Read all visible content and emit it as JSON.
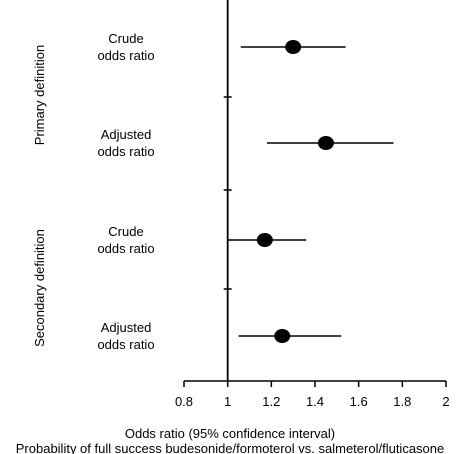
{
  "chart_data": {
    "type": "forest",
    "xlabel": "Odds ratio (95% confidence interval)",
    "caption": "Probability of full success budesonide/formoterol vs. salmeterol/fluticasone",
    "xlim": [
      0.8,
      2.0
    ],
    "xticks": [
      "0.8",
      "1",
      "1.2",
      "1.4",
      "1.6",
      "1.8",
      "2"
    ],
    "reference_line": 1.0,
    "groups": [
      {
        "name": "Primary definition",
        "rows": [
          {
            "label": [
              "Crude",
              "odds ratio"
            ],
            "or": 1.3,
            "lo": 1.06,
            "hi": 1.54
          },
          {
            "label": [
              "Adjusted",
              "odds ratio"
            ],
            "or": 1.45,
            "lo": 1.18,
            "hi": 1.76
          }
        ]
      },
      {
        "name": "Secondary definition",
        "rows": [
          {
            "label": [
              "Crude",
              "odds ratio"
            ],
            "or": 1.17,
            "lo": 1.0,
            "hi": 1.36
          },
          {
            "label": [
              "Adjusted",
              "odds ratio"
            ],
            "or": 1.25,
            "lo": 1.05,
            "hi": 1.52
          }
        ]
      }
    ]
  }
}
